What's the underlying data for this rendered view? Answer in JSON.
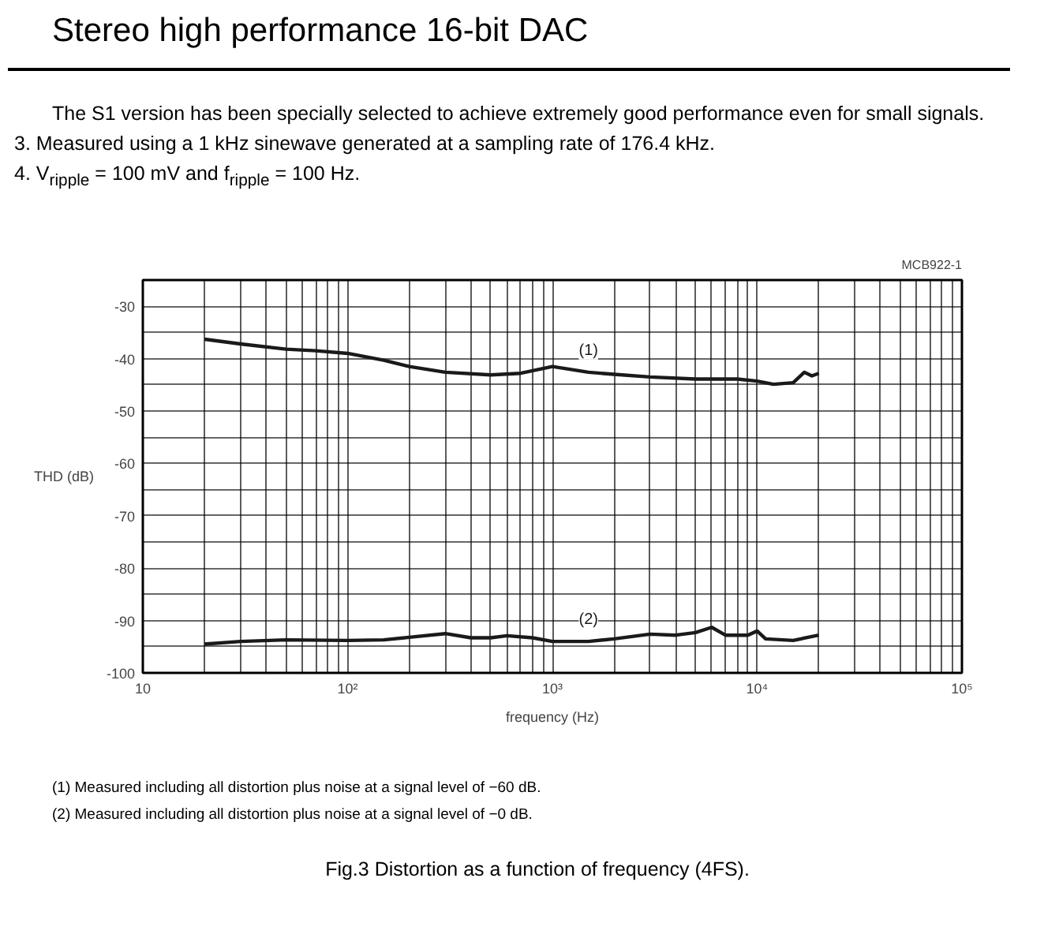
{
  "chart_data": {
    "type": "line",
    "title": "Stereo high performance 16-bit DAC",
    "xlabel": "frequency (Hz)",
    "ylabel": "THD (dB)",
    "log": "x",
    "grid": true,
    "marker": "none",
    "line_style": "solid",
    "xlim": [
      10,
      100000
    ],
    "ylim": [
      -100,
      -25
    ],
    "xticks": [
      {
        "value": 10,
        "label": "10"
      },
      {
        "value": 20,
        "label": null
      },
      {
        "value": 30,
        "label": null
      },
      {
        "value": 40,
        "label": null
      },
      {
        "value": 50,
        "label": null
      },
      {
        "value": 60,
        "label": null
      },
      {
        "value": 70,
        "label": null
      },
      {
        "value": 80,
        "label": null
      },
      {
        "value": 90,
        "label": null
      },
      {
        "value": 100,
        "label": "10²"
      },
      {
        "value": 200,
        "label": null
      },
      {
        "value": 300,
        "label": null
      },
      {
        "value": 400,
        "label": null
      },
      {
        "value": 500,
        "label": null
      },
      {
        "value": 600,
        "label": null
      },
      {
        "value": 700,
        "label": null
      },
      {
        "value": 800,
        "label": null
      },
      {
        "value": 900,
        "label": null
      },
      {
        "value": 1000,
        "label": "10³"
      },
      {
        "value": 2000,
        "label": null
      },
      {
        "value": 3000,
        "label": null
      },
      {
        "value": 4000,
        "label": null
      },
      {
        "value": 5000,
        "label": null
      },
      {
        "value": 6000,
        "label": null
      },
      {
        "value": 7000,
        "label": null
      },
      {
        "value": 8000,
        "label": null
      },
      {
        "value": 9000,
        "label": null
      },
      {
        "value": 10000,
        "label": "10⁴"
      },
      {
        "value": 20000,
        "label": null
      },
      {
        "value": 30000,
        "label": null
      },
      {
        "value": 40000,
        "label": null
      },
      {
        "value": 50000,
        "label": null
      },
      {
        "value": 60000,
        "label": null
      },
      {
        "value": 70000,
        "label": null
      },
      {
        "value": 80000,
        "label": null
      },
      {
        "value": 90000,
        "label": null
      },
      {
        "value": 100000,
        "label": "10⁵"
      }
    ],
    "yticks": [
      -100,
      {
        "value": -95,
        "label": null
      },
      -90,
      {
        "value": -85,
        "label": null
      },
      -80,
      {
        "value": -75,
        "label": null
      },
      -70,
      {
        "value": -65,
        "label": null
      },
      -60,
      {
        "value": -55,
        "label": null
      },
      -50,
      {
        "value": -45,
        "label": null
      },
      -40,
      {
        "value": -35,
        "label": null
      },
      -30
    ],
    "series": [
      {
        "name": "(1)",
        "color": "#1a1a1a",
        "x": [
          20,
          30,
          50,
          70,
          100,
          150,
          200,
          300,
          500,
          700,
          1000,
          1500,
          2000,
          3000,
          5000,
          8000,
          10000,
          12000,
          15000,
          17000,
          18500,
          20000
        ],
        "values": [
          -36.3,
          -37.2,
          -38.2,
          -38.5,
          -39,
          -40.3,
          -41.5,
          -42.6,
          -43.1,
          -42.8,
          -41.5,
          -42.6,
          -43,
          -43.5,
          -43.9,
          -43.9,
          -44.3,
          -44.9,
          -44.6,
          -42.6,
          -43.3,
          -42.8
        ]
      },
      {
        "name": "(2)",
        "color": "#1a1a1a",
        "x": [
          20,
          30,
          50,
          100,
          150,
          200,
          300,
          400,
          500,
          600,
          800,
          1000,
          1500,
          2000,
          3000,
          4000,
          5000,
          6000,
          7000,
          9000,
          10000,
          11000,
          15000,
          20000
        ],
        "values": [
          -94.5,
          -94,
          -93.7,
          -93.8,
          -93.7,
          -93.2,
          -92.5,
          -93.3,
          -93.3,
          -92.9,
          -93.3,
          -94,
          -94,
          -93.5,
          -92.6,
          -92.8,
          -92.3,
          -91.3,
          -92.8,
          -92.8,
          -92,
          -93.5,
          -93.8,
          -92.8
        ]
      }
    ],
    "annotations": [
      "The S1 version has been specially selected to achieve extremely good performance even for small signals.",
      "3.  Measured using a 1 kHz sinewave generated at a sampling rate of 176.4 kHz.",
      "4.  V$_{ripple}$ = 100 mV and f$_{ripple}$ = 100 Hz.",
      "MCB922-1",
      "(1) Measured including all distortion plus noise at a signal level of −60 dB.",
      "(2) Measured including all distortion plus noise at a signal level of −0 dB.",
      "Fig.3  Distortion as a function of frequency (4FS)."
    ]
  }
}
